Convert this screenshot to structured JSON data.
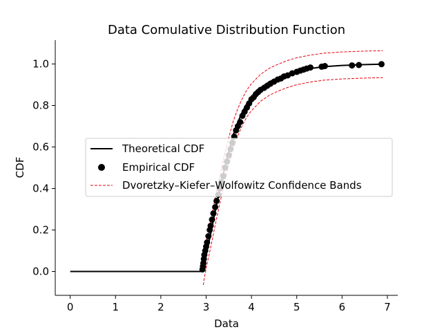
{
  "chart_data": {
    "type": "line",
    "title": "Data Comulative Distribution Function",
    "xlabel": "Data",
    "ylabel": "CDF",
    "xlim": [
      -0.33,
      7.23
    ],
    "ylim": [
      -0.115,
      1.115
    ],
    "xticks": [
      0,
      1,
      2,
      3,
      4,
      5,
      6,
      7
    ],
    "yticks": [
      0.0,
      0.2,
      0.4,
      0.6,
      0.8,
      1.0
    ],
    "ytick_labels": [
      "0.0",
      "0.2",
      "0.4",
      "0.6",
      "0.8",
      "1.0"
    ],
    "grid": false,
    "legend_position": "center-left",
    "legend": [
      {
        "label": "Theoretical CDF",
        "kind": "line",
        "color": "#000000"
      },
      {
        "label": "Empirical CDF",
        "kind": "marker",
        "color": "#000000"
      },
      {
        "label": "Dvoretzky–Kiefer–Wolfowitz Confidence Bands",
        "kind": "dashed",
        "color": "#e8000b"
      }
    ],
    "series": [
      {
        "name": "Theoretical CDF",
        "style": "line",
        "color": "#000000",
        "x": [
          0.0,
          2.9,
          2.95,
          3.0,
          3.1,
          3.2,
          3.3,
          3.4,
          3.5,
          3.6,
          3.7,
          3.8,
          3.9,
          4.0,
          4.2,
          4.4,
          4.6,
          4.8,
          5.0,
          5.3,
          5.6,
          6.0,
          6.5,
          6.9
        ],
        "y": [
          0.0,
          0.0,
          0.02,
          0.08,
          0.18,
          0.29,
          0.39,
          0.49,
          0.58,
          0.66,
          0.72,
          0.77,
          0.81,
          0.84,
          0.885,
          0.915,
          0.935,
          0.952,
          0.965,
          0.978,
          0.987,
          0.993,
          0.997,
          0.999
        ]
      },
      {
        "name": "Empirical CDF",
        "style": "scatter",
        "color": "#000000",
        "x": [
          2.92,
          2.93,
          2.94,
          2.95,
          2.96,
          2.98,
          3.0,
          3.02,
          3.05,
          3.08,
          3.1,
          3.13,
          3.16,
          3.2,
          3.23,
          3.27,
          3.3,
          3.34,
          3.38,
          3.42,
          3.46,
          3.5,
          3.54,
          3.58,
          3.62,
          3.66,
          3.7,
          3.75,
          3.8,
          3.85,
          3.9,
          3.95,
          4.0,
          4.05,
          4.1,
          4.15,
          4.2,
          4.28,
          4.35,
          4.42,
          4.5,
          4.58,
          4.65,
          4.72,
          4.8,
          4.9,
          5.0,
          5.08,
          5.15,
          5.22,
          5.3,
          5.55,
          5.62,
          6.22,
          6.37,
          6.87
        ],
        "y": [
          0.01,
          0.025,
          0.04,
          0.06,
          0.08,
          0.1,
          0.12,
          0.14,
          0.17,
          0.2,
          0.22,
          0.25,
          0.28,
          0.31,
          0.34,
          0.37,
          0.4,
          0.43,
          0.46,
          0.5,
          0.53,
          0.56,
          0.59,
          0.62,
          0.65,
          0.68,
          0.7,
          0.72,
          0.75,
          0.77,
          0.79,
          0.81,
          0.83,
          0.84,
          0.855,
          0.865,
          0.875,
          0.885,
          0.895,
          0.905,
          0.915,
          0.925,
          0.93,
          0.94,
          0.945,
          0.955,
          0.962,
          0.968,
          0.973,
          0.978,
          0.983,
          0.987,
          0.99,
          0.993,
          0.995,
          0.999
        ]
      },
      {
        "name": "Dvoretzky–Kiefer–Wolfowitz Confidence Bands",
        "style": "dashed",
        "color": "#e8000b",
        "x": [
          2.94,
          2.95,
          3.0,
          3.1,
          3.2,
          3.3,
          3.4,
          3.5,
          3.6,
          3.7,
          3.8,
          3.9,
          4.0,
          4.2,
          4.4,
          4.6,
          4.8,
          5.0,
          5.3,
          5.6,
          6.0,
          6.5,
          6.9
        ],
        "y": [
          -0.065,
          -0.045,
          0.015,
          0.115,
          0.225,
          0.325,
          0.425,
          0.515,
          0.595,
          0.655,
          0.705,
          0.745,
          0.775,
          0.82,
          0.85,
          0.87,
          0.887,
          0.9,
          0.913,
          0.922,
          0.928,
          0.932,
          0.934
        ]
      },
      {
        "name": "Dvoretzky–Kiefer–Wolfowitz Confidence Bands",
        "style": "dashed",
        "color": "#e8000b",
        "x": [
          2.94,
          2.95,
          3.0,
          3.1,
          3.2,
          3.3,
          3.4,
          3.5,
          3.6,
          3.7,
          3.8,
          3.9,
          4.0,
          4.2,
          4.4,
          4.6,
          4.8,
          5.0,
          5.3,
          5.6,
          6.0,
          6.5,
          6.9
        ],
        "y": [
          0.07,
          0.085,
          0.145,
          0.245,
          0.355,
          0.455,
          0.555,
          0.645,
          0.725,
          0.785,
          0.835,
          0.875,
          0.905,
          0.95,
          0.98,
          1.0,
          1.017,
          1.03,
          1.043,
          1.052,
          1.058,
          1.062,
          1.064
        ]
      }
    ]
  }
}
